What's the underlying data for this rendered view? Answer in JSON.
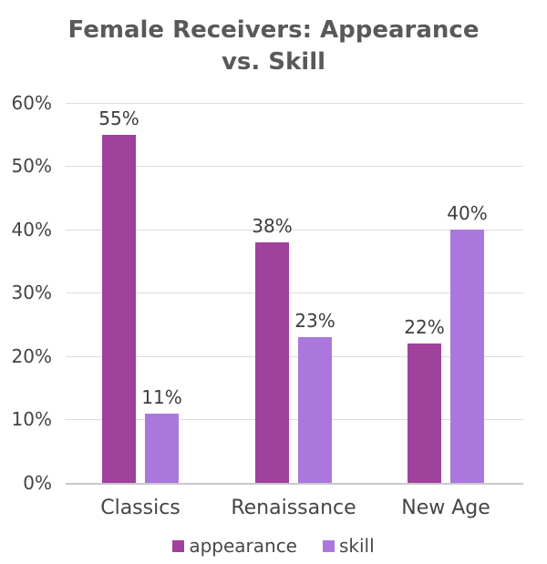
{
  "title": {
    "text": "Female Receivers: Appearance vs. Skill",
    "lines": [
      "Female Receivers: Appearance",
      "vs. Skill"
    ]
  },
  "chart_data": {
    "type": "bar",
    "title": "Female Receivers: Appearance vs. Skill",
    "categories": [
      "Classics",
      "Renaissance",
      "New Age"
    ],
    "series": [
      {
        "name": "appearance",
        "color": "#a0419c",
        "values": [
          55,
          38,
          22
        ],
        "data_labels": [
          "55%",
          "38%",
          "22%"
        ]
      },
      {
        "name": "skill",
        "color": "#aa78dc",
        "values": [
          11,
          23,
          40
        ],
        "data_labels": [
          "11%",
          "23%",
          "40%"
        ]
      }
    ],
    "yaxis": {
      "ylim": [
        0,
        60
      ],
      "ticks": [
        {
          "value": 0,
          "label": "0%"
        },
        {
          "value": 10,
          "label": "10%"
        },
        {
          "value": 20,
          "label": "20%"
        },
        {
          "value": 30,
          "label": "30%"
        },
        {
          "value": 40,
          "label": "40%"
        },
        {
          "value": 50,
          "label": "50%"
        },
        {
          "value": 60,
          "label": "60%"
        }
      ]
    },
    "grid": true,
    "legend_position": "bottom",
    "text_colors": {
      "title": "#58595b",
      "labels": "#3b3d3f"
    }
  }
}
